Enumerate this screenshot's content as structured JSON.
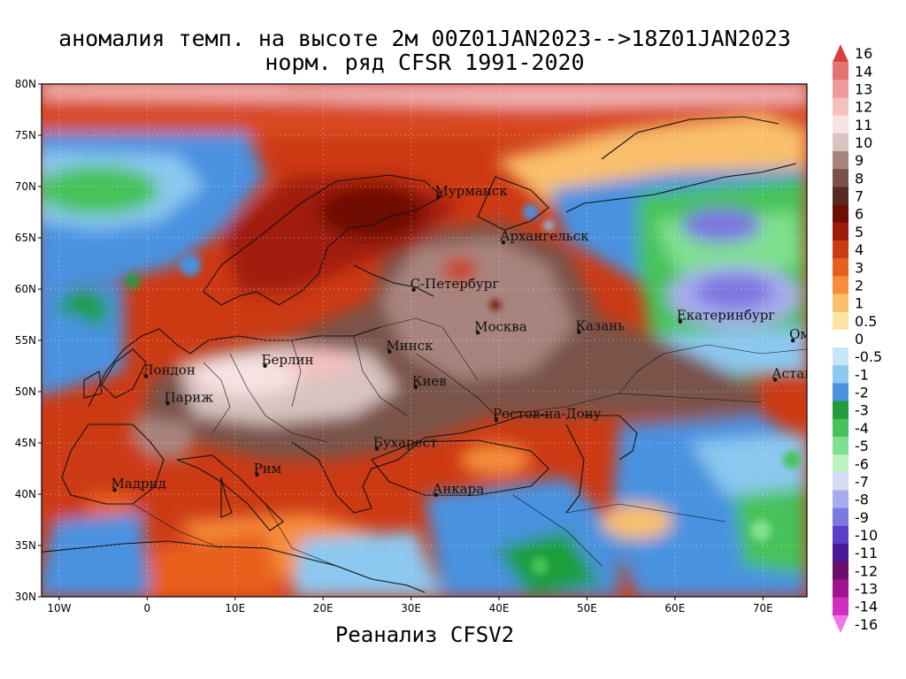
{
  "title_line1": "аномалия темп. на высоте 2м 00Z01JAN2023-->18Z01JAN2023",
  "title_line2": "норм. ряд CFSR 1991-2020",
  "footer": "Реанализ CFSV2",
  "map": {
    "lon_range": [
      -12,
      75
    ],
    "lat_range": [
      30,
      80
    ],
    "lon_ticks": [
      {
        "value": -10,
        "label": "10W"
      },
      {
        "value": 0,
        "label": "0"
      },
      {
        "value": 10,
        "label": "10E"
      },
      {
        "value": 20,
        "label": "20E"
      },
      {
        "value": 30,
        "label": "30E"
      },
      {
        "value": 40,
        "label": "40E"
      },
      {
        "value": 50,
        "label": "50E"
      },
      {
        "value": 60,
        "label": "60E"
      },
      {
        "value": 70,
        "label": "70E"
      }
    ],
    "lat_ticks": [
      {
        "value": 80,
        "label": "80N"
      },
      {
        "value": 75,
        "label": "75N"
      },
      {
        "value": 70,
        "label": "70N"
      },
      {
        "value": 65,
        "label": "65N"
      },
      {
        "value": 60,
        "label": "60N"
      },
      {
        "value": 55,
        "label": "55N"
      },
      {
        "value": 50,
        "label": "50N"
      },
      {
        "value": 45,
        "label": "45N"
      },
      {
        "value": 40,
        "label": "40N"
      },
      {
        "value": 35,
        "label": "35N"
      },
      {
        "value": 30,
        "label": "30N"
      }
    ],
    "cities": [
      {
        "name": "Мурманск",
        "lon": 33.1,
        "lat": 68.97
      },
      {
        "name": "Архангельск",
        "lon": 40.5,
        "lat": 64.55
      },
      {
        "name": "С-Петербург",
        "lon": 30.3,
        "lat": 59.93
      },
      {
        "name": "Москва",
        "lon": 37.6,
        "lat": 55.75
      },
      {
        "name": "Казань",
        "lon": 49.1,
        "lat": 55.8
      },
      {
        "name": "Екатеринбург",
        "lon": 60.6,
        "lat": 56.84
      },
      {
        "name": "Омск",
        "lon": 73.4,
        "lat": 54.98
      },
      {
        "name": "Астана",
        "lon": 71.4,
        "lat": 51.17
      },
      {
        "name": "Минск",
        "lon": 27.56,
        "lat": 53.9
      },
      {
        "name": "Киев",
        "lon": 30.52,
        "lat": 50.45
      },
      {
        "name": "Берлин",
        "lon": 13.4,
        "lat": 52.52
      },
      {
        "name": "Лондон",
        "lon": -0.13,
        "lat": 51.5
      },
      {
        "name": "Париж",
        "lon": 2.35,
        "lat": 48.85
      },
      {
        "name": "Ростов-на-Дону",
        "lon": 39.7,
        "lat": 47.23
      },
      {
        "name": "Бухарест",
        "lon": 26.1,
        "lat": 44.43
      },
      {
        "name": "Рим",
        "lon": 12.5,
        "lat": 41.9
      },
      {
        "name": "Мадрид",
        "lon": -3.7,
        "lat": 40.42
      },
      {
        "name": "Анкара",
        "lon": 32.85,
        "lat": 39.93
      }
    ]
  },
  "legend": {
    "levels": [
      {
        "label": "16",
        "color": "#d93f3f"
      },
      {
        "label": "14",
        "color": "#e57373"
      },
      {
        "label": "13",
        "color": "#ef9a9a"
      },
      {
        "label": "12",
        "color": "#f5c0c0"
      },
      {
        "label": "11",
        "color": "#f8e2e2"
      },
      {
        "label": "10",
        "color": "#d9c3c0"
      },
      {
        "label": "9",
        "color": "#a9847e"
      },
      {
        "label": "8",
        "color": "#7a5249"
      },
      {
        "label": "7",
        "color": "#5a2a20"
      },
      {
        "label": "6",
        "color": "#6e0f05"
      },
      {
        "label": "5",
        "color": "#a01b08"
      },
      {
        "label": "4",
        "color": "#cc3a14"
      },
      {
        "label": "3",
        "color": "#e8601e"
      },
      {
        "label": "2",
        "color": "#f58d3b"
      },
      {
        "label": "1",
        "color": "#f9bf6b"
      },
      {
        "label": "0.5",
        "color": "#fbe3a0"
      },
      {
        "label": "0",
        "color": "#ffffff"
      },
      {
        "label": "-0.5",
        "color": "#c4e8f8"
      },
      {
        "label": "-1",
        "color": "#8cc8f0"
      },
      {
        "label": "-2",
        "color": "#4a92e0"
      },
      {
        "label": "-3",
        "color": "#1f9e3b"
      },
      {
        "label": "-4",
        "color": "#46c25a"
      },
      {
        "label": "-5",
        "color": "#7fe08f"
      },
      {
        "label": "-6",
        "color": "#bdf2c2"
      },
      {
        "label": "-7",
        "color": "#d7daf5"
      },
      {
        "label": "-8",
        "color": "#a8acef"
      },
      {
        "label": "-9",
        "color": "#7d77e0"
      },
      {
        "label": "-10",
        "color": "#5a3fc8"
      },
      {
        "label": "-11",
        "color": "#4a1a9a"
      },
      {
        "label": "-12",
        "color": "#6a0f6e"
      },
      {
        "label": "-13",
        "color": "#a0148f"
      },
      {
        "label": "-14",
        "color": "#d22ec2"
      },
      {
        "label": "-16",
        "color": "#f075e6"
      }
    ]
  }
}
